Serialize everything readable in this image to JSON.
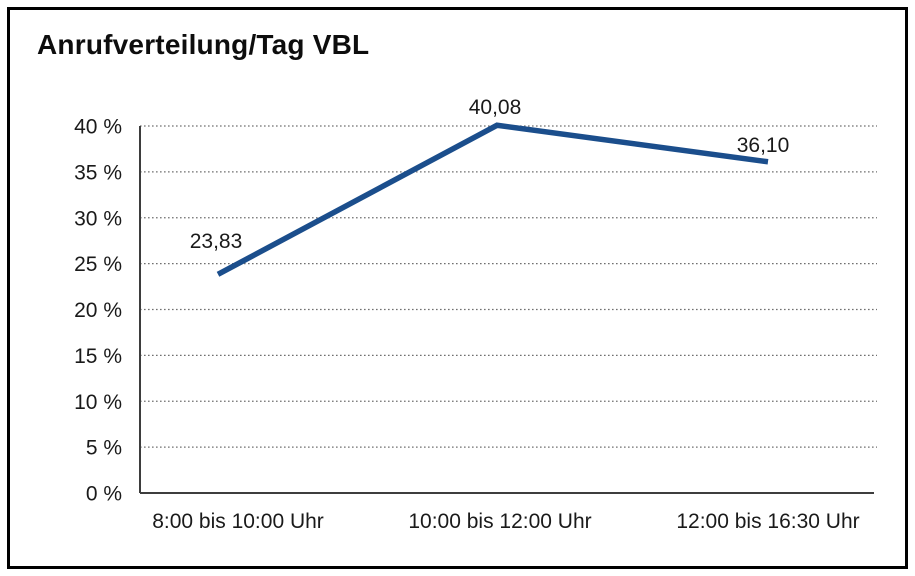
{
  "page": {
    "background_color": "#ffffff",
    "border_color": "#000000"
  },
  "chart_data": {
    "type": "line",
    "title": "Anrufverteilung/Tag VBL",
    "categories": [
      "8:00 bis 10:00 Uhr",
      "10:00 bis 12:00 Uhr",
      "12:00 bis 16:30 Uhr"
    ],
    "series": [
      {
        "name": "Anrufverteilung/Tag VBL",
        "values": [
          23.83,
          40.08,
          36.1
        ],
        "point_labels": [
          "23,83",
          "40,08",
          "36,10"
        ]
      }
    ],
    "xlabel": "",
    "ylabel": "",
    "ylim": [
      0,
      40
    ],
    "ytick_step": 5,
    "ytick_labels": [
      "0 %",
      "5 %",
      "10 %",
      "15 %",
      "20 %",
      "25 %",
      "30 %",
      "35 %",
      "40 %"
    ],
    "grid": "horizontal-dotted",
    "legend": "none",
    "colors": {
      "line": "#1b4e8c",
      "axis": "#3d3d3d",
      "grid": "#707070",
      "text": "#1a1a1a"
    }
  }
}
